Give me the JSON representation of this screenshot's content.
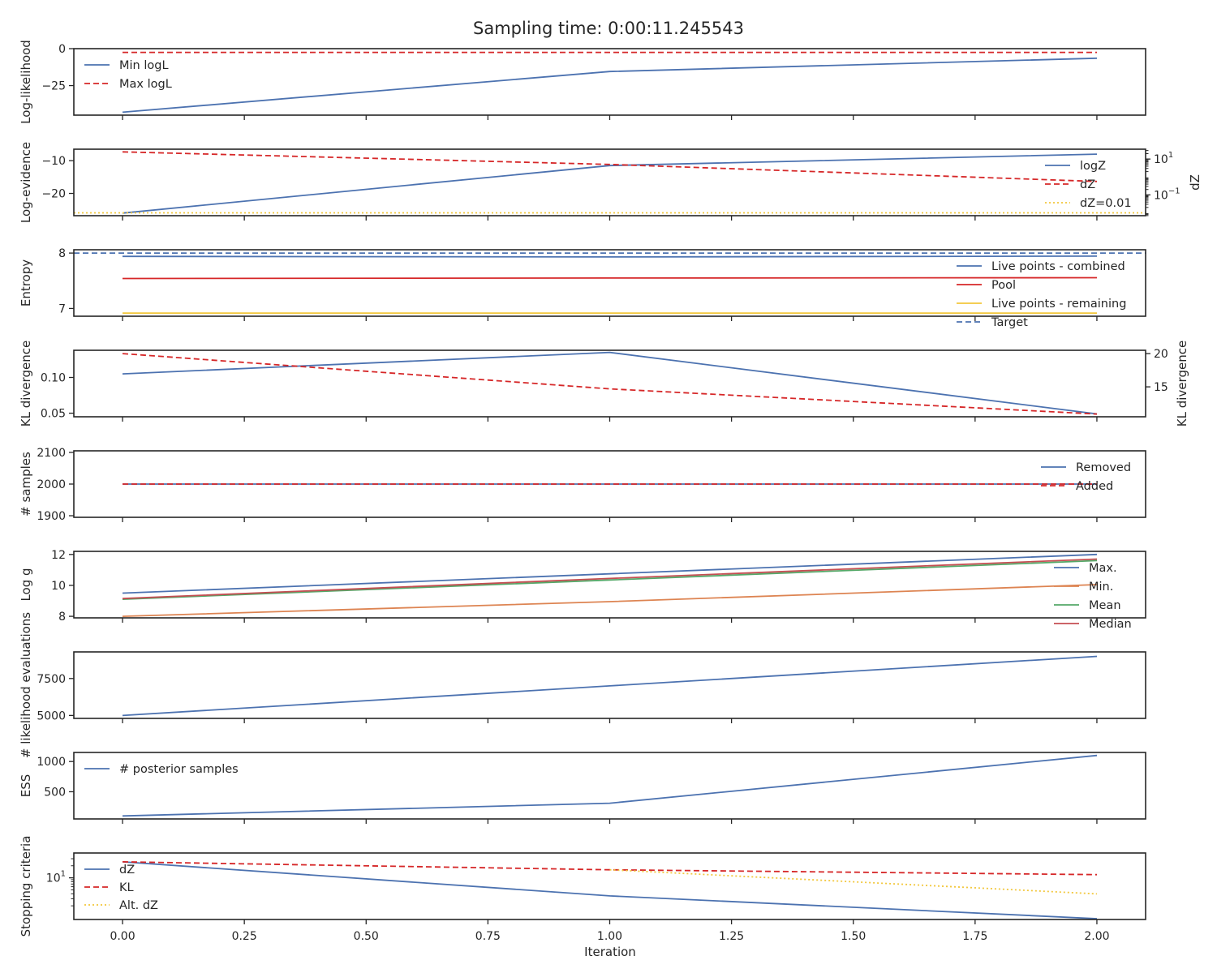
{
  "title": "Sampling time: 0:00:11.245543",
  "colors": {
    "blue": "#4c72b0",
    "red": "#d62728",
    "yellow": "#f2c73c",
    "orange": "#dd8452",
    "green": "#55a868",
    "darkred": "#c44e52"
  },
  "chart_data": [
    {
      "type": "line",
      "ylabel": "Log-likelihood",
      "ylim": [
        -45,
        0
      ],
      "yticks": [
        0,
        -25
      ],
      "yticklabels": [
        "0",
        "−25"
      ],
      "legend": "upper-left",
      "series": [
        {
          "name": "Min logL",
          "x": [
            0,
            1,
            2
          ],
          "y": [
            -43,
            -15.5,
            -6.5
          ],
          "color": "#4c72b0",
          "dash": "solid"
        },
        {
          "name": "Max logL",
          "x": [
            0,
            1,
            2
          ],
          "y": [
            -2.5,
            -2.5,
            -2.5
          ],
          "color": "#d62728",
          "dash": "dashed"
        }
      ]
    },
    {
      "type": "line",
      "ylabel": "Log-evidence",
      "ylim": [
        -26.8,
        -6.5
      ],
      "yticks": [
        -10,
        -20
      ],
      "yticklabels": [
        "−10",
        "−20"
      ],
      "ylabel_right": "dZ",
      "ylim_right_log10": [
        -2.16,
        1.55
      ],
      "yticks_right_log10": [
        1,
        -1
      ],
      "yticklabels_right": [
        [
          "10",
          "1"
        ],
        [
          "10",
          "−1"
        ]
      ],
      "legend": "center-right",
      "series": [
        {
          "name": "logZ",
          "x": [
            0,
            1,
            2
          ],
          "y": [
            -26,
            -11.5,
            -8
          ],
          "color": "#4c72b0",
          "dash": "solid",
          "axis": "left"
        },
        {
          "name": "dZ",
          "x": [
            0,
            1,
            2
          ],
          "y": [
            1.4,
            0.7,
            -0.25
          ],
          "color": "#d62728",
          "dash": "dashed",
          "axis": "right",
          "log": true
        },
        {
          "name": "dZ=0.01",
          "x": [
            -0.1,
            2.1
          ],
          "y": [
            -2,
            -2
          ],
          "color": "#f2c73c",
          "dash": "dotted",
          "axis": "right",
          "log": true
        }
      ]
    },
    {
      "type": "line",
      "ylabel": "Entropy",
      "ylim": [
        6.86,
        8.06
      ],
      "yticks": [
        8,
        7
      ],
      "yticklabels": [
        "8",
        "7"
      ],
      "legend": "lower-right",
      "series": [
        {
          "name": "Live points - combined",
          "x": [
            0,
            1,
            2
          ],
          "y": [
            7.94,
            7.93,
            7.945
          ],
          "color": "#4c72b0",
          "dash": "solid"
        },
        {
          "name": "Pool",
          "x": [
            0,
            1,
            2
          ],
          "y": [
            7.54,
            7.55,
            7.555
          ],
          "color": "#d62728",
          "dash": "solid"
        },
        {
          "name": "Live points - remaining",
          "x": [
            0,
            1,
            2
          ],
          "y": [
            6.915,
            6.915,
            6.915
          ],
          "color": "#f2c73c",
          "dash": "solid"
        },
        {
          "name": "Target",
          "x": [
            -0.1,
            2.1
          ],
          "y": [
            8.0,
            8.0
          ],
          "color": "#4c72b0",
          "dash": "dashed"
        }
      ]
    },
    {
      "type": "line",
      "ylabel": "KL divergence",
      "ylim": [
        0.045,
        0.138
      ],
      "yticks": [
        0.1,
        0.05
      ],
      "yticklabels": [
        "0.10",
        "0.05"
      ],
      "ylabel_right": "KL divergence",
      "ylim_right": [
        10.5,
        20.5
      ],
      "yticks_right": [
        20,
        15
      ],
      "yticklabels_right": [
        "20",
        "15"
      ],
      "series": [
        {
          "name": "",
          "x": [
            0,
            1,
            2
          ],
          "y": [
            0.105,
            0.135,
            0.049
          ],
          "color": "#4c72b0",
          "dash": "solid",
          "axis": "left"
        },
        {
          "name": "",
          "x": [
            0,
            1,
            2
          ],
          "y": [
            20,
            14.7,
            10.9
          ],
          "color": "#d62728",
          "dash": "dashed",
          "axis": "right"
        }
      ]
    },
    {
      "type": "line",
      "ylabel": "# samples",
      "ylim": [
        1895,
        2105
      ],
      "yticks": [
        2100,
        2000,
        1900
      ],
      "yticklabels": [
        "2100",
        "2000",
        "1900"
      ],
      "legend": "upper-right",
      "series": [
        {
          "name": "Removed",
          "x": [
            0,
            1,
            2
          ],
          "y": [
            2000,
            2000,
            2000
          ],
          "color": "#4c72b0",
          "dash": "solid"
        },
        {
          "name": "Added",
          "x": [
            0,
            1,
            2
          ],
          "y": [
            2000,
            2000,
            2000
          ],
          "color": "#d62728",
          "dash": "dashed"
        }
      ]
    },
    {
      "type": "line",
      "ylabel": "Log g",
      "ylim": [
        7.9,
        12.2
      ],
      "yticks": [
        12,
        10,
        8
      ],
      "yticklabels": [
        "12",
        "10",
        "8"
      ],
      "legend": "center-right",
      "series": [
        {
          "name": "Max.",
          "x": [
            0,
            1,
            2
          ],
          "y": [
            9.5,
            10.75,
            12.0
          ],
          "color": "#4c72b0",
          "dash": "solid"
        },
        {
          "name": "Min.",
          "x": [
            0,
            1,
            2
          ],
          "y": [
            8.0,
            8.95,
            10.05
          ],
          "color": "#dd8452",
          "dash": "solid"
        },
        {
          "name": "Mean",
          "x": [
            0,
            1,
            2
          ],
          "y": [
            9.1,
            10.35,
            11.6
          ],
          "color": "#55a868",
          "dash": "solid"
        },
        {
          "name": "Median",
          "x": [
            0,
            1,
            2
          ],
          "y": [
            9.15,
            10.45,
            11.7
          ],
          "color": "#c44e52",
          "dash": "solid"
        }
      ]
    },
    {
      "type": "line",
      "ylabel": "# likelihood evaluations",
      "ylim": [
        4800,
        9300
      ],
      "yticks": [
        7500,
        5000
      ],
      "yticklabels": [
        "7500",
        "5000"
      ],
      "series": [
        {
          "name": "",
          "x": [
            0,
            1,
            2
          ],
          "y": [
            5000,
            7000,
            9000
          ],
          "color": "#4c72b0",
          "dash": "solid"
        }
      ]
    },
    {
      "type": "line",
      "ylabel": "ESS",
      "ylim": [
        50,
        1150
      ],
      "yticks": [
        1000,
        500
      ],
      "yticklabels": [
        "1000",
        "500"
      ],
      "legend": "upper-left",
      "series": [
        {
          "name": "# posterior samples",
          "x": [
            0,
            1,
            2
          ],
          "y": [
            100,
            310,
            1100
          ],
          "color": "#4c72b0",
          "dash": "solid"
        }
      ]
    },
    {
      "type": "line",
      "ylabel": "Stopping criteria",
      "ylim_log10": [
        -0.04,
        1.62
      ],
      "yscale": "log",
      "yticks_log10": [
        1
      ],
      "yticklabels": [
        [
          "10",
          "1"
        ]
      ],
      "legend": "upper-left",
      "series": [
        {
          "name": "dZ",
          "x": [
            0,
            1,
            2
          ],
          "y": [
            1.4,
            0.55,
            -0.02
          ],
          "color": "#4c72b0",
          "dash": "solid"
        },
        {
          "name": "KL",
          "x": [
            0,
            1,
            2
          ],
          "y": [
            1.4,
            1.2,
            1.08
          ],
          "color": "#d62728",
          "dash": "dashed"
        },
        {
          "name": "Alt. dZ",
          "x": [
            1,
            2
          ],
          "y": [
            1.2,
            0.6
          ],
          "color": "#f2c73c",
          "dash": "dotted"
        }
      ]
    }
  ],
  "xaxis": {
    "label": "Iteration",
    "xlim": [
      -0.1,
      2.1
    ],
    "ticks": [
      0,
      0.25,
      0.5,
      0.75,
      1.0,
      1.25,
      1.5,
      1.75,
      2.0
    ],
    "ticklabels": [
      "0.00",
      "0.25",
      "0.50",
      "0.75",
      "1.00",
      "1.25",
      "1.50",
      "1.75",
      "2.00"
    ]
  }
}
